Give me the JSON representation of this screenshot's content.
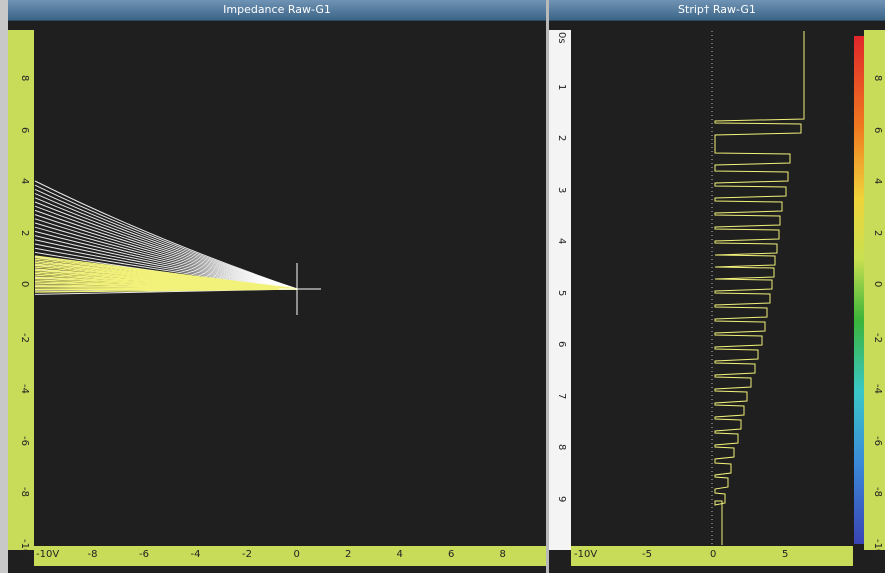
{
  "impedance": {
    "title": "Impedance Raw-G1",
    "y_ticks": [
      "8",
      "6",
      "4",
      "2",
      "0",
      "-2",
      "-4",
      "-6",
      "-8",
      "-10V"
    ],
    "x_ticks": [
      "-10V",
      "-8",
      "-6",
      "-4",
      "-2",
      "0",
      "2",
      "4",
      "6",
      "8"
    ]
  },
  "strip": {
    "title": "Strip† Raw-G1",
    "time_ticks": [
      "0s",
      "1",
      "2",
      "3",
      "4",
      "5",
      "6",
      "7",
      "8",
      "9"
    ],
    "x_ticks": [
      "-10V",
      "-5",
      "0",
      "5"
    ],
    "color_ticks": [
      "8",
      "6",
      "4",
      "2",
      "0",
      "-2",
      "-4",
      "-6",
      "-8",
      "-10V"
    ]
  },
  "colors": {
    "trace_white": "#ffffff",
    "trace_yellow": "#f2f27a",
    "ruler": "#c8dc5a",
    "background": "#1f1f1f"
  }
}
